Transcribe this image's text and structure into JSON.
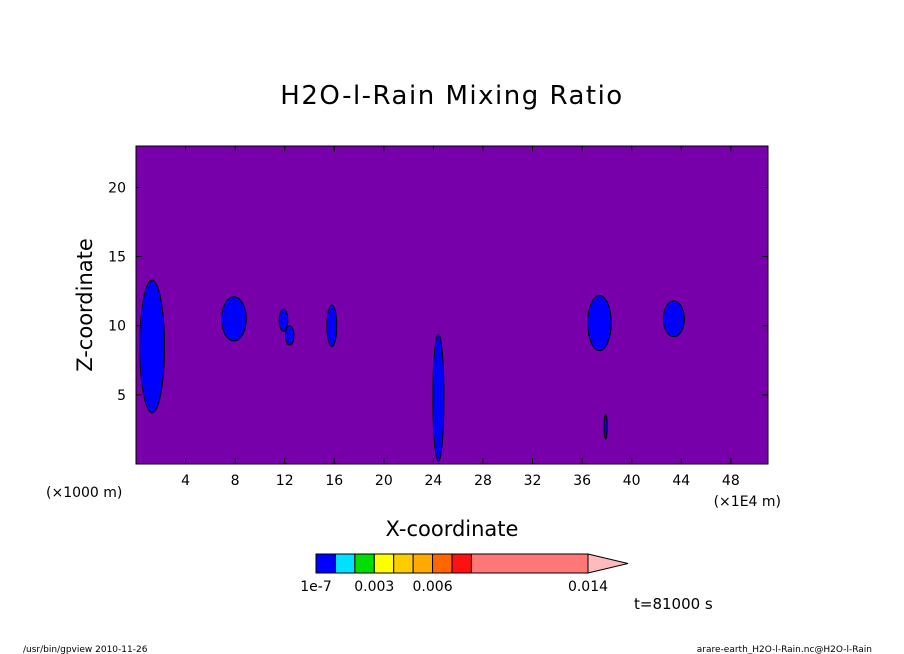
{
  "chart_data": {
    "type": "contour",
    "title": "H2O-l-Rain Mixing Ratio",
    "xlabel": "X-coordinate",
    "ylabel": "Z-coordinate",
    "x_unit_left": "(×1000 m)",
    "x_unit_right": "(×1E4 m)",
    "x_range": [
      0,
      51
    ],
    "y_range": [
      0,
      23
    ],
    "x_ticks": [
      4,
      8,
      12,
      16,
      20,
      24,
      28,
      32,
      36,
      40,
      44,
      48
    ],
    "x_tick_labels": [
      "4",
      "8",
      "12",
      "16",
      "20",
      "24",
      "28",
      "32",
      "36",
      "40",
      "44",
      "48"
    ],
    "y_ticks": [
      5,
      10,
      15,
      20
    ],
    "y_tick_labels": [
      "5",
      "10",
      "15",
      "20"
    ],
    "background_color": "#7700aa",
    "colorbar": {
      "colors": [
        "#0000ff",
        "#00e0ff",
        "#00dd00",
        "#ffff00",
        "#ffcc00",
        "#ffaa00",
        "#ff6600",
        "#ff1111",
        "#ff7777"
      ],
      "extend_color": "#ffbbbb",
      "labels": [
        {
          "text": "1e-7",
          "at": 0
        },
        {
          "text": "0.003",
          "at": 3
        },
        {
          "text": "0.006",
          "at": 6
        },
        {
          "text": "0.014",
          "at": 14
        }
      ],
      "levels": [
        0,
        1,
        2,
        3,
        4,
        5,
        6,
        7,
        8,
        14
      ]
    },
    "cells": [
      {
        "x": 1.3,
        "z": 8.5,
        "rx": 1.0,
        "rz": 4.8,
        "level": 1
      },
      {
        "x": 7.9,
        "z": 10.5,
        "rx": 1.0,
        "rz": 1.6,
        "level": 1
      },
      {
        "x": 11.9,
        "z": 10.4,
        "rx": 0.35,
        "rz": 0.8,
        "level": 1
      },
      {
        "x": 12.4,
        "z": 9.3,
        "rx": 0.35,
        "rz": 0.7,
        "level": 1
      },
      {
        "x": 15.8,
        "z": 10.0,
        "rx": 0.4,
        "rz": 1.5,
        "level": 1
      },
      {
        "x": 24.4,
        "z": 4.8,
        "rx": 0.45,
        "rz": 4.6,
        "level": 1
      },
      {
        "x": 37.4,
        "z": 10.2,
        "rx": 0.95,
        "rz": 2.0,
        "level": 1
      },
      {
        "x": 37.9,
        "z": 2.7,
        "rx": 0.12,
        "rz": 0.9,
        "level": 1
      },
      {
        "x": 43.4,
        "z": 10.5,
        "rx": 0.85,
        "rz": 1.3,
        "level": 1
      }
    ],
    "time_label": "t=81000 s"
  },
  "footer": {
    "left": "/usr/bin/gpview   2010-11-26",
    "right": "arare-earth_H2O-l-Rain.nc@H2O-l-Rain"
  }
}
